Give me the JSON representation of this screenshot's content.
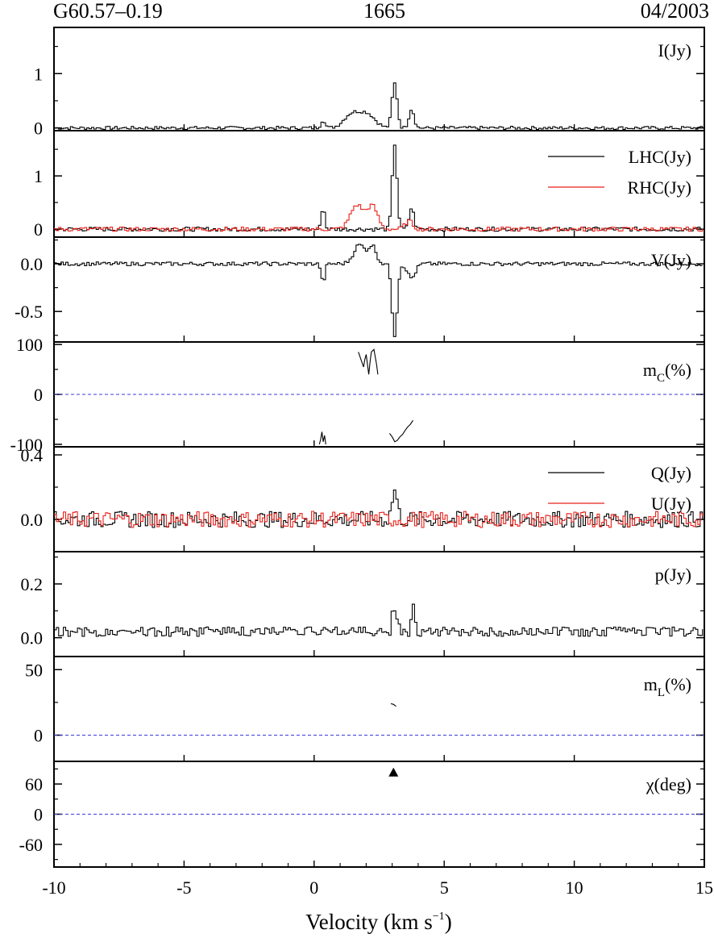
{
  "header": {
    "source": "G60.57–0.19",
    "frequency": "1665",
    "epoch": "04/2003"
  },
  "chart_data": {
    "type": "line",
    "xlabel": "Velocity (km s⁻¹)",
    "xlabel_main": "Velocity (km s",
    "xlabel_exp": "−1",
    "xlabel_close": ")",
    "xlim": [
      -10,
      15
    ],
    "xticks": [
      -10,
      -5,
      0,
      5,
      10,
      15
    ],
    "xtick_labels": [
      "-10",
      "-5",
      "0",
      "5",
      "10",
      "15"
    ],
    "colors": {
      "black": "#000000",
      "red": "#e8221b",
      "dashed": "#3b3bd8"
    },
    "panels": [
      {
        "id": "I",
        "label": "I(Jy)",
        "ylim": [
          -0.05,
          1.85
        ],
        "yticks": [
          0,
          1
        ],
        "ytick_labels": [
          "0",
          "1"
        ],
        "series": [
          {
            "name": "I(Jy)",
            "color": "#000000",
            "style": "step",
            "peaks": [
              [
                0.3,
                0.15,
                0.08
              ],
              [
                1.4,
                0.25,
                0.3
              ],
              [
                2.0,
                0.25,
                0.3
              ],
              [
                3.05,
                0.82,
                0.1
              ],
              [
                3.7,
                0.35,
                0.1
              ]
            ],
            "noise": 0.03
          }
        ]
      },
      {
        "id": "LR",
        "label_main": "LHC(Jy)",
        "label_second": "RHC(Jy)",
        "ylim": [
          -0.15,
          1.85
        ],
        "yticks": [
          0,
          1
        ],
        "ytick_labels": [
          "0",
          "1"
        ],
        "series": [
          {
            "name": "LHC(Jy)",
            "color": "#000000",
            "style": "step",
            "peaks": [
              [
                0.3,
                0.45,
                0.06
              ],
              [
                3.05,
                1.6,
                0.09
              ],
              [
                3.7,
                0.4,
                0.09
              ]
            ],
            "noise": 0.04
          },
          {
            "name": "RHC(Jy)",
            "color": "#e8221b",
            "style": "step",
            "peaks": [
              [
                1.6,
                0.45,
                0.25
              ],
              [
                2.2,
                0.42,
                0.2
              ],
              [
                3.6,
                0.15,
                0.15
              ]
            ],
            "noise": 0.04
          }
        ]
      },
      {
        "id": "V",
        "label": "V(Jy)",
        "ylim": [
          -0.82,
          0.28
        ],
        "yticks": [
          0.0,
          -0.5
        ],
        "ytick_labels": [
          "0.0",
          "-0.5"
        ],
        "series": [
          {
            "name": "V(Jy)",
            "color": "#000000",
            "style": "step",
            "peaks": [
              [
                0.3,
                -0.2,
                0.07
              ],
              [
                1.7,
                0.2,
                0.22
              ],
              [
                2.2,
                0.18,
                0.15
              ],
              [
                3.05,
                -0.75,
                0.1
              ],
              [
                3.7,
                -0.15,
                0.15
              ]
            ],
            "noise": 0.02
          }
        ]
      },
      {
        "id": "mc",
        "label_main": "m",
        "label_sub": "C",
        "label_close": "(%)",
        "ylim": [
          -105,
          105
        ],
        "yticks": [
          100,
          0,
          -100
        ],
        "ytick_labels": [
          "100",
          "0",
          "-100"
        ],
        "zero_line": true,
        "segments": [
          {
            "color": "#000000",
            "points": [
              [
                1.7,
                85
              ],
              [
                1.8,
                70
              ],
              [
                1.9,
                55
              ],
              [
                1.95,
                70
              ],
              [
                2.0,
                80
              ],
              [
                2.05,
                60
              ],
              [
                2.1,
                40
              ],
              [
                2.15,
                65
              ],
              [
                2.2,
                85
              ],
              [
                2.3,
                90
              ],
              [
                2.4,
                60
              ],
              [
                2.45,
                40
              ]
            ]
          },
          {
            "color": "#000000",
            "points": [
              [
                0.2,
                -100
              ],
              [
                0.25,
                -90
              ],
              [
                0.3,
                -75
              ],
              [
                0.35,
                -95
              ],
              [
                0.4,
                -82
              ],
              [
                0.45,
                -100
              ]
            ]
          },
          {
            "color": "#000000",
            "points": [
              [
                2.9,
                -78
              ],
              [
                3.0,
                -85
              ],
              [
                3.1,
                -95
              ],
              [
                3.2,
                -92
              ],
              [
                3.3,
                -85
              ],
              [
                3.4,
                -80
              ],
              [
                3.5,
                -72
              ],
              [
                3.6,
                -65
              ],
              [
                3.7,
                -60
              ],
              [
                3.8,
                -52
              ]
            ]
          }
        ]
      },
      {
        "id": "QU",
        "label_main": "Q(Jy)",
        "label_second": "U(Jy)",
        "ylim": [
          -0.2,
          0.45
        ],
        "yticks": [
          0.4,
          0.0
        ],
        "ytick_labels": [
          "0.4",
          "0.0"
        ],
        "series": [
          {
            "name": "Q(Jy)",
            "color": "#000000",
            "style": "step",
            "peaks": [
              [
                3.05,
                0.18,
                0.1
              ]
            ],
            "noise": 0.05
          },
          {
            "name": "U(Jy)",
            "color": "#e8221b",
            "style": "step",
            "peaks": [],
            "noise": 0.05
          }
        ]
      },
      {
        "id": "p",
        "label": "p(Jy)",
        "ylim": [
          -0.07,
          0.32
        ],
        "yticks": [
          0.2,
          0.0
        ],
        "ytick_labels": [
          "0.2",
          "0.0"
        ],
        "series": [
          {
            "name": "p(Jy)",
            "color": "#000000",
            "style": "step",
            "peaks": [
              [
                3.05,
                0.13,
                0.1
              ],
              [
                3.75,
                0.1,
                0.08
              ]
            ],
            "noise": 0.035,
            "positive": true
          }
        ]
      },
      {
        "id": "mL",
        "label_main": "m",
        "label_sub": "L",
        "label_close": "(%)",
        "ylim": [
          -20,
          60
        ],
        "yticks": [
          50,
          0
        ],
        "ytick_labels": [
          "50",
          "0"
        ],
        "zero_line": true,
        "segments": [
          {
            "color": "#000000",
            "points": [
              [
                2.95,
                24
              ],
              [
                3.05,
                23.5
              ],
              [
                3.15,
                22
              ]
            ]
          }
        ]
      },
      {
        "id": "chi",
        "label": "χ(deg)",
        "ylim": [
          -105,
          105
        ],
        "yticks": [
          60,
          0,
          -60
        ],
        "ytick_labels": [
          "60",
          "0",
          "-60"
        ],
        "zero_line": true,
        "markers": [
          {
            "x": 3.05,
            "y": 83,
            "color": "#000000"
          }
        ]
      }
    ]
  }
}
